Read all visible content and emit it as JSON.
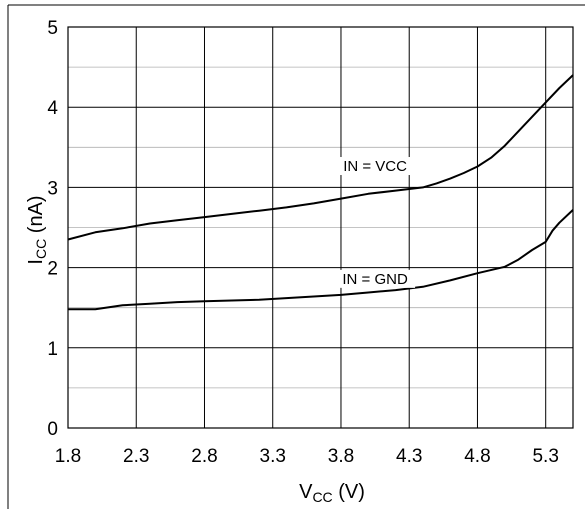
{
  "chart_data": {
    "type": "line",
    "xlabel_main": "V",
    "xlabel_sub": "CC",
    "xlabel_unit": " (V)",
    "ylabel_main": "I",
    "ylabel_sub": "CC",
    "ylabel_unit": " (nA)",
    "xlim": [
      1.8,
      5.5
    ],
    "ylim": [
      0,
      5
    ],
    "x_ticks": [
      "1.8",
      "2.3",
      "2.8",
      "3.3",
      "3.8",
      "4.3",
      "4.8",
      "5.3"
    ],
    "y_ticks": [
      "0",
      "1",
      "2",
      "3",
      "4",
      "5"
    ],
    "grid": true,
    "series": [
      {
        "name": "IN = VCC",
        "x": [
          1.8,
          2.0,
          2.2,
          2.4,
          2.6,
          2.8,
          3.0,
          3.2,
          3.4,
          3.6,
          3.8,
          4.0,
          4.2,
          4.4,
          4.5,
          4.6,
          4.7,
          4.8,
          4.9,
          5.0,
          5.1,
          5.2,
          5.3,
          5.4,
          5.5
        ],
        "y": [
          2.35,
          2.44,
          2.49,
          2.55,
          2.59,
          2.63,
          2.67,
          2.71,
          2.75,
          2.8,
          2.86,
          2.92,
          2.96,
          3.0,
          3.05,
          3.11,
          3.18,
          3.26,
          3.37,
          3.52,
          3.7,
          3.88,
          4.06,
          4.24,
          4.4
        ]
      },
      {
        "name": "IN = GND",
        "x": [
          1.8,
          2.0,
          2.2,
          2.4,
          2.6,
          2.8,
          3.0,
          3.2,
          3.4,
          3.6,
          3.8,
          4.0,
          4.2,
          4.4,
          4.6,
          4.8,
          5.0,
          5.1,
          5.2,
          5.3,
          5.35,
          5.4,
          5.5
        ],
        "y": [
          1.48,
          1.48,
          1.53,
          1.55,
          1.57,
          1.58,
          1.59,
          1.6,
          1.62,
          1.64,
          1.66,
          1.69,
          1.72,
          1.76,
          1.84,
          1.93,
          2.01,
          2.1,
          2.22,
          2.32,
          2.46,
          2.56,
          2.72
        ]
      }
    ],
    "annotations": [
      {
        "text": "IN = VCC",
        "series": 0
      },
      {
        "text": "IN = GND",
        "series": 1
      }
    ]
  }
}
